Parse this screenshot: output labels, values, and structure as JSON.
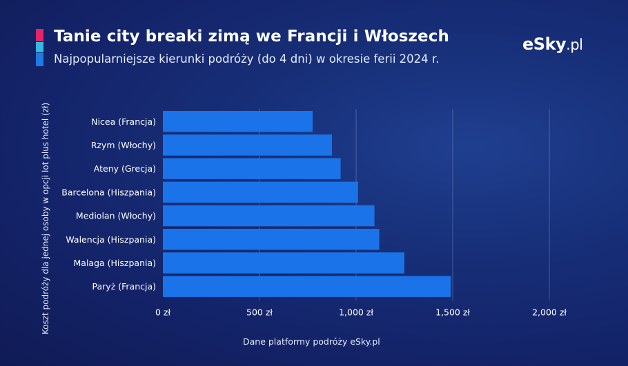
{
  "header": {
    "title": "Tanie city breaki zimą we Francji i Włoszech",
    "subtitle": "Najpopularniejsze kierunki podróży (do 4 dni) w okresie ferii 2024 r."
  },
  "brand": {
    "logo_main": "eSky",
    "logo_suffix": ".pl"
  },
  "colors": {
    "accent_pink": "#e6246a",
    "accent_cyan": "#35b8e4",
    "accent_blue": "#1f7ae6",
    "bar": "#1a73e8",
    "background": "#14246a"
  },
  "footer": {
    "source": "Dane platformy podróży eSky.pl"
  },
  "chart_data": {
    "type": "bar",
    "orientation": "horizontal",
    "title": "Tanie city breaki zimą we Francji i Włoszech",
    "subtitle": "Najpopularniejsze kierunki podróży (do 4 dni) w okresie ferii 2024 r.",
    "ylabel": "Koszt podróży dla jednej osoby w opcji lot plus hotel (zł)",
    "xlabel": "",
    "categories": [
      "Nicea (Francja)",
      "Rzym (Włochy)",
      "Ateny (Grecja)",
      "Barcelona (Hiszpania)",
      "Mediolan (Włochy)",
      "Walencja (Hiszpania)",
      "Malaga (Hiszpania)",
      "Paryż (Francja)"
    ],
    "values": [
      775,
      875,
      920,
      1010,
      1095,
      1120,
      1250,
      1490
    ],
    "xlim": [
      0,
      2000
    ],
    "xticks": [
      0,
      500,
      1000,
      1500,
      2000
    ],
    "xtick_labels": [
      "0 zł",
      "500 zł",
      "1,000 zł",
      "1,500 zł",
      "2,000 zł"
    ],
    "grid": true
  }
}
